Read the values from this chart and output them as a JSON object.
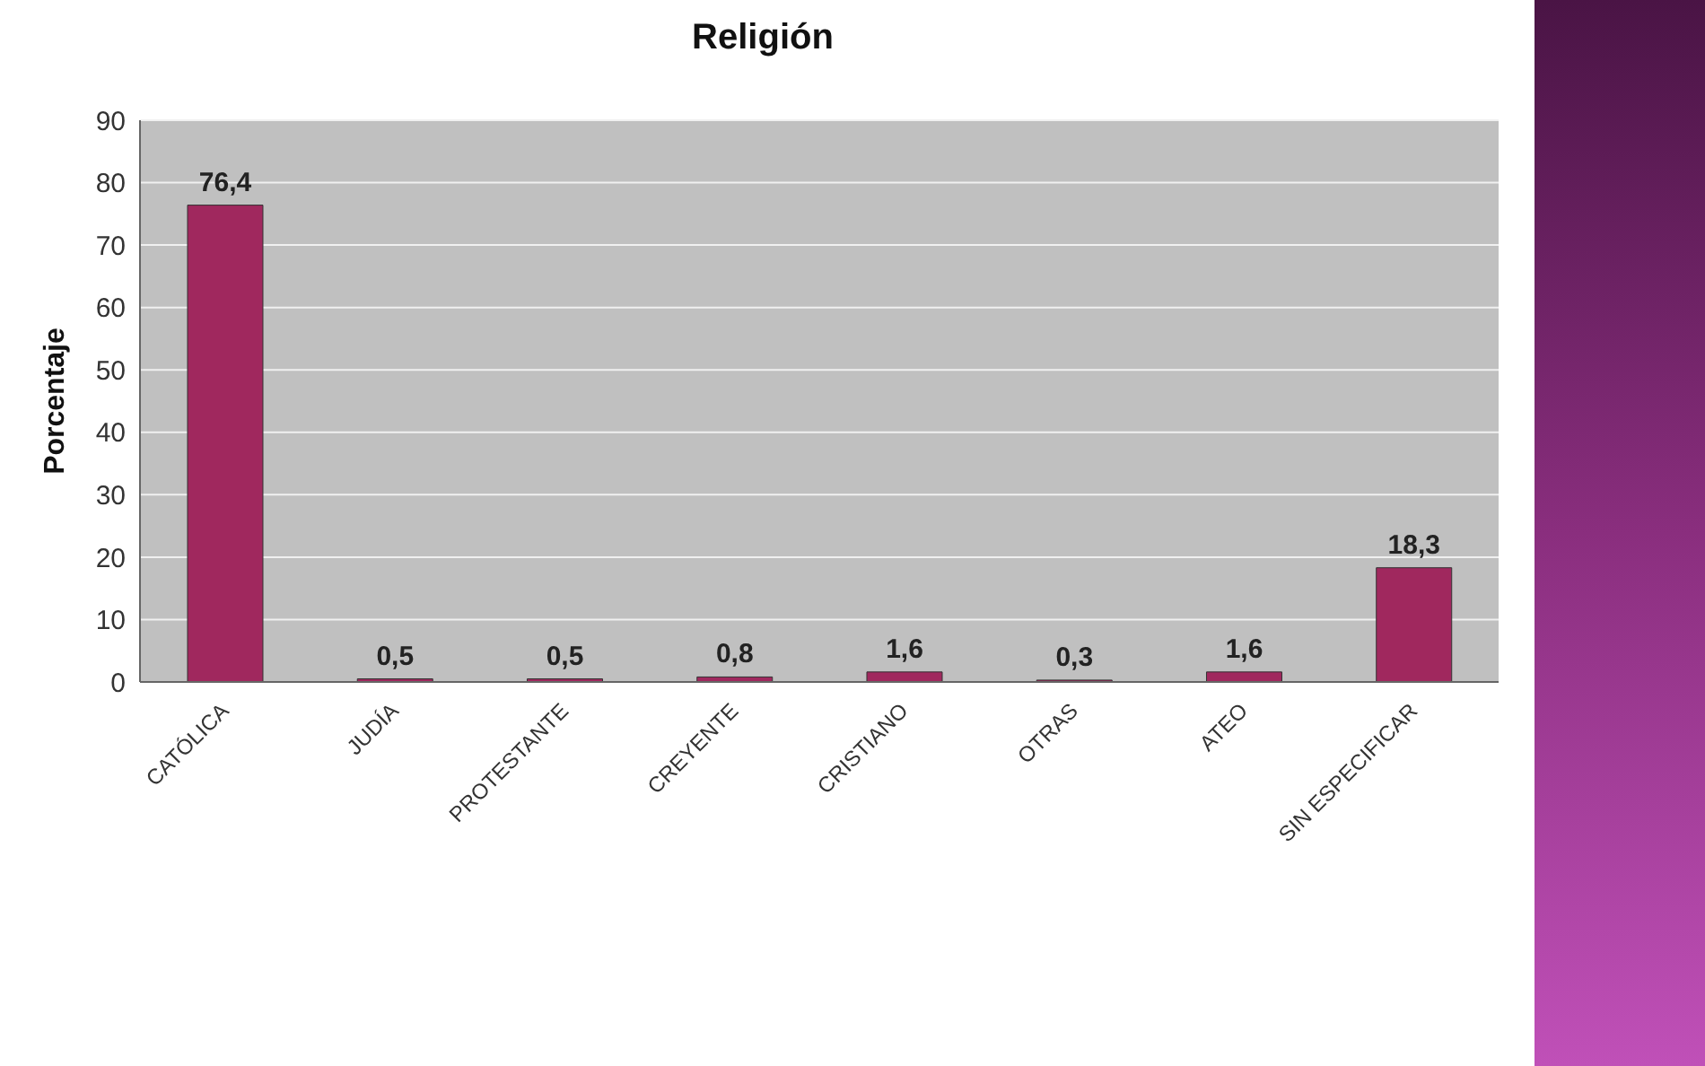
{
  "chart_data": {
    "type": "bar",
    "title": "Religión",
    "ylabel": "Porcentaje",
    "categories": [
      "CATÓLICA",
      "JUDÍA",
      "PROTESTANTE",
      "CREYENTE",
      "CRISTIANO",
      "OTRAS",
      "ATEO",
      "SIN ESPECIFICAR"
    ],
    "values": [
      76.4,
      0.5,
      0.5,
      0.8,
      1.6,
      0.3,
      1.6,
      18.3
    ],
    "value_labels": [
      "76,4",
      "0,5",
      "0,5",
      "0,8",
      "1,6",
      "0,3",
      "1,6",
      "18,3"
    ],
    "color": "#a0285e",
    "ylim": [
      0,
      90
    ],
    "yticks": [
      0,
      10,
      20,
      30,
      40,
      50,
      60,
      70,
      80,
      90
    ],
    "grid": "y",
    "legend": false
  }
}
